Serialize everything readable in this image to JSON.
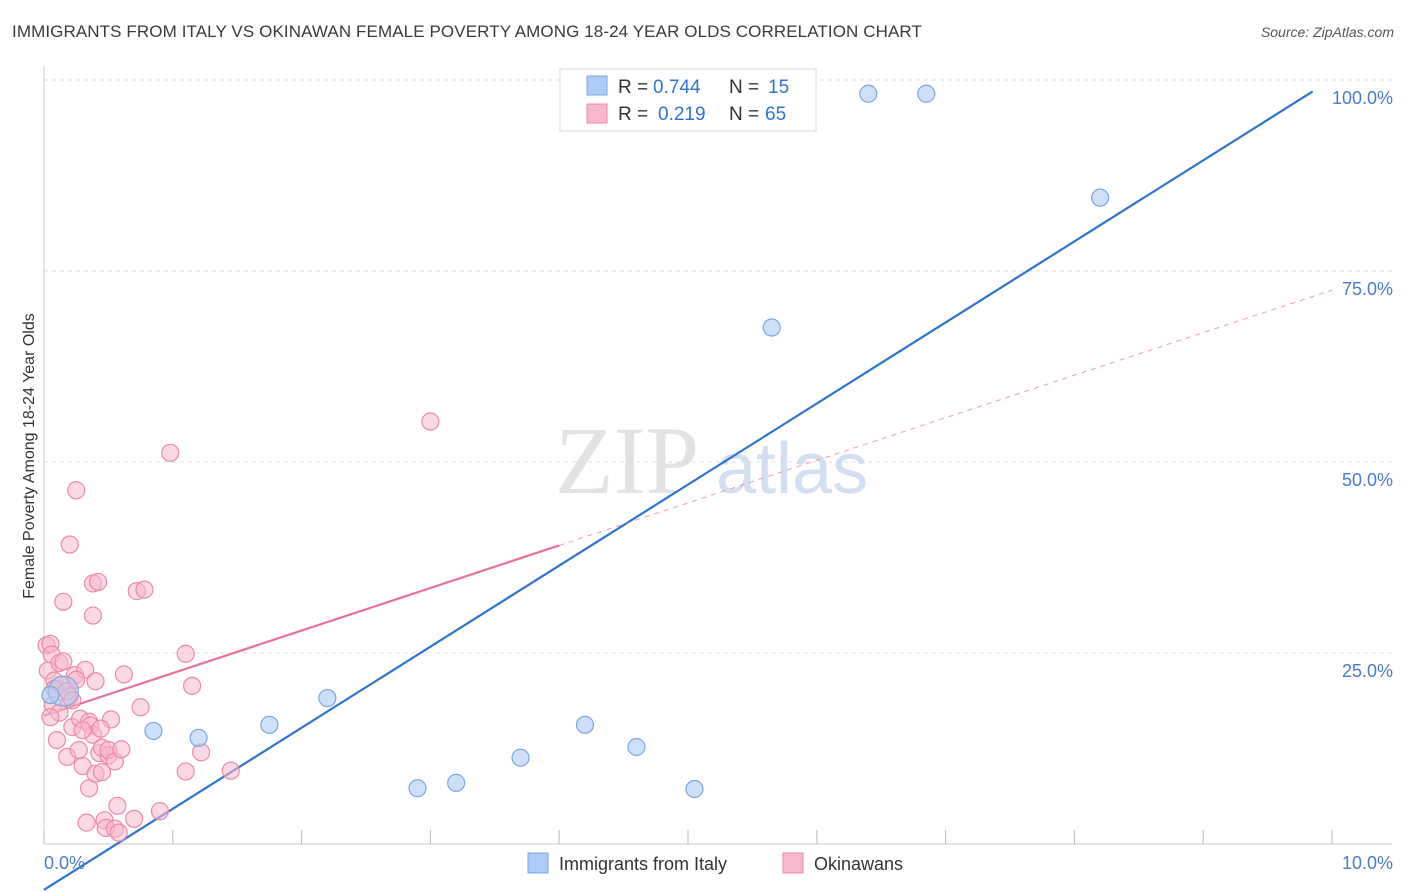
{
  "title": "IMMIGRANTS FROM ITALY VS OKINAWAN FEMALE POVERTY AMONG 18-24 YEAR OLDS CORRELATION CHART",
  "source": "Source: ZipAtlas.com",
  "watermark": {
    "zip": "ZIP",
    "atlas": "atlas"
  },
  "colors": {
    "italy_fill": "#aecbf5",
    "italy_stroke": "#7aa6e0",
    "italy_line": "#2d74d0",
    "okinawa_fill": "#f7b8cc",
    "okinawa_stroke": "#ea8aa8",
    "okinawa_line": "#e8709a",
    "tick_text": "#4a7cc9",
    "grid": "#dddddd"
  },
  "legend_top": {
    "rows": [
      {
        "r_label": "R = ",
        "r_value": "0.744",
        "n_label": "N = ",
        "n_value": "15"
      },
      {
        "r_label": "R = ",
        "r_value": "0.219",
        "n_label": "N = ",
        "n_value": "65"
      }
    ]
  },
  "legend_bottom": [
    "Immigrants from Italy",
    "Okinawans"
  ],
  "chart_data": {
    "type": "scatter",
    "title": "IMMIGRANTS FROM ITALY VS OKINAWAN FEMALE POVERTY AMONG 18-24 YEAR OLDS CORRELATION CHART",
    "xlabel": "",
    "ylabel": "Female Poverty Among 18-24 Year Olds",
    "xlim": [
      0,
      10
    ],
    "ylim": [
      0,
      100
    ],
    "x_tick_labels": [
      "0.0%",
      "10.0%"
    ],
    "y_ticks": [
      25,
      50,
      75,
      100
    ],
    "y_tick_labels": [
      "25.0%",
      "50.0%",
      "75.0%",
      "100.0%"
    ],
    "grid": true,
    "legend_position": "bottom-center",
    "series": [
      {
        "name": "Immigrants from Italy",
        "r": 0.744,
        "n": 15,
        "points": [
          [
            0.05,
            19.5
          ],
          [
            0.85,
            14.8
          ],
          [
            1.2,
            13.9
          ],
          [
            1.75,
            15.6
          ],
          [
            2.2,
            19.1
          ],
          [
            2.9,
            7.3
          ],
          [
            3.2,
            8.0
          ],
          [
            3.7,
            11.3
          ],
          [
            4.2,
            15.6
          ],
          [
            4.6,
            12.7
          ],
          [
            5.05,
            7.2
          ],
          [
            5.65,
            67.6
          ],
          [
            6.4,
            98.2
          ],
          [
            6.85,
            98.2
          ],
          [
            8.2,
            84.6
          ]
        ],
        "trend": {
          "x0": 0.0,
          "y0": -6.0,
          "x1": 9.85,
          "y1": 98.5,
          "dashed_to": null
        }
      },
      {
        "name": "Okinawans",
        "r": 0.219,
        "n": 65,
        "points": [
          [
            0.02,
            26.0
          ],
          [
            0.03,
            22.7
          ],
          [
            0.05,
            26.2
          ],
          [
            0.06,
            24.8
          ],
          [
            0.07,
            18.2
          ],
          [
            0.08,
            21.4
          ],
          [
            0.1,
            13.6
          ],
          [
            0.12,
            23.7
          ],
          [
            0.13,
            20.8
          ],
          [
            0.15,
            31.7
          ],
          [
            0.15,
            23.9
          ],
          [
            0.18,
            11.4
          ],
          [
            0.2,
            19.3
          ],
          [
            0.2,
            39.2
          ],
          [
            0.22,
            15.3
          ],
          [
            0.24,
            22.1
          ],
          [
            0.25,
            46.3
          ],
          [
            0.27,
            12.3
          ],
          [
            0.28,
            16.4
          ],
          [
            0.3,
            10.2
          ],
          [
            0.32,
            22.8
          ],
          [
            0.33,
            2.8
          ],
          [
            0.35,
            16.0
          ],
          [
            0.35,
            7.3
          ],
          [
            0.36,
            15.5
          ],
          [
            0.38,
            14.3
          ],
          [
            0.38,
            34.1
          ],
          [
            0.38,
            29.9
          ],
          [
            0.4,
            21.3
          ],
          [
            0.4,
            9.2
          ],
          [
            0.42,
            34.3
          ],
          [
            0.43,
            11.9
          ],
          [
            0.45,
            12.6
          ],
          [
            0.45,
            9.4
          ],
          [
            0.47,
            3.1
          ],
          [
            0.48,
            2.1
          ],
          [
            0.5,
            11.6
          ],
          [
            0.5,
            12.3
          ],
          [
            0.52,
            16.3
          ],
          [
            0.55,
            2.0
          ],
          [
            0.55,
            10.8
          ],
          [
            0.57,
            5.0
          ],
          [
            0.58,
            1.5
          ],
          [
            0.6,
            12.4
          ],
          [
            0.62,
            22.2
          ],
          [
            0.7,
            3.3
          ],
          [
            0.72,
            33.1
          ],
          [
            0.75,
            17.9
          ],
          [
            0.78,
            33.3
          ],
          [
            0.9,
            4.3
          ],
          [
            0.98,
            51.2
          ],
          [
            1.1,
            24.9
          ],
          [
            1.1,
            9.5
          ],
          [
            1.15,
            20.7
          ],
          [
            1.22,
            12.0
          ],
          [
            1.45,
            9.6
          ],
          [
            3.0,
            55.3
          ],
          [
            0.08,
            20.3
          ],
          [
            0.18,
            20.0
          ],
          [
            0.25,
            21.5
          ],
          [
            0.12,
            17.2
          ],
          [
            0.3,
            14.9
          ],
          [
            0.44,
            15.1
          ],
          [
            0.05,
            16.6
          ],
          [
            0.22,
            18.8
          ]
        ],
        "trend": {
          "x0": 0.0,
          "y0": 16.8,
          "x1": 10.0,
          "y1": 72.5,
          "dashed_to": 4.0
        }
      }
    ]
  }
}
